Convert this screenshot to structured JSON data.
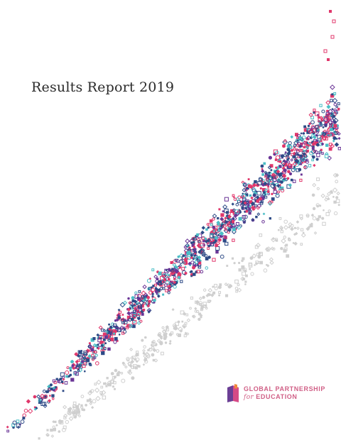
{
  "cover": {
    "title": "Results Report 2019"
  },
  "logo": {
    "line1": "GLOBAL PARTNERSHIP",
    "line2_prefix": "for",
    "line2_main": "EDUCATION",
    "colors": {
      "text": "#d05f86",
      "book_purple": "#6b3f95",
      "book_pink": "#d64a86",
      "book_orange": "#f08a3c"
    }
  },
  "palette": {
    "navy": "#2d4a86",
    "purple": "#6a3596",
    "pink": "#e0376b",
    "teal": "#4bbec6",
    "gray": "#cfcfcf"
  }
}
